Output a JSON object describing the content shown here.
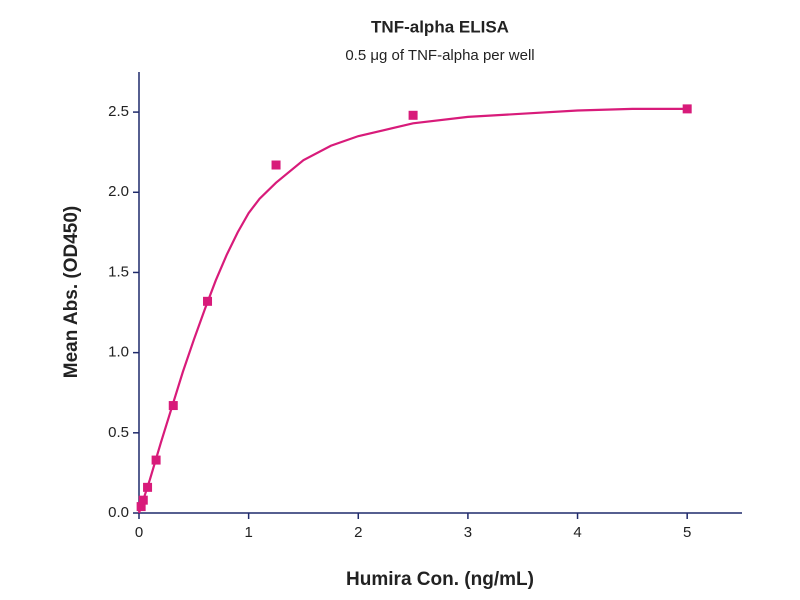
{
  "chart_data": {
    "type": "scatter",
    "title": "TNF-alpha ELISA",
    "subtitle": "0.5 μg of TNF-alpha per well",
    "x_label": "Humira Con. (ng/mL)",
    "y_label": "Mean Abs. (OD450)",
    "xlim": [
      0,
      5.5
    ],
    "xticks": [
      0,
      1,
      2,
      3,
      4,
      5
    ],
    "ylim": [
      0,
      2.75
    ],
    "yticks": [
      {
        "value": 0,
        "label": "0.0"
      },
      0.5,
      {
        "value": 1,
        "label": "1.0"
      },
      1.5,
      {
        "value": 2,
        "label": "2.0"
      },
      2.5
    ],
    "axis_color": "#1f2a6b",
    "series": [
      {
        "mode": "markers",
        "color": "#d81b7a",
        "x": [
          0.0195,
          0.039,
          0.078,
          0.156,
          0.3125,
          0.625,
          1.25,
          2.5,
          5
        ],
        "values": [
          0.04,
          0.08,
          0.16,
          0.33,
          0.67,
          1.32,
          2.17,
          2.48,
          2.52
        ]
      },
      {
        "mode": "line",
        "color": "#d81b7a",
        "x": [
          0,
          0.1,
          0.2,
          0.3,
          0.4,
          0.5,
          0.6,
          0.7,
          0.8,
          0.9,
          1.0,
          1.1,
          1.25,
          1.5,
          1.75,
          2.0,
          2.5,
          3.0,
          3.5,
          4.0,
          4.5,
          5.0
        ],
        "values": [
          0,
          0.21,
          0.44,
          0.66,
          0.88,
          1.08,
          1.27,
          1.45,
          1.61,
          1.75,
          1.87,
          1.96,
          2.06,
          2.2,
          2.29,
          2.35,
          2.43,
          2.47,
          2.49,
          2.51,
          2.52,
          2.52
        ]
      }
    ]
  }
}
